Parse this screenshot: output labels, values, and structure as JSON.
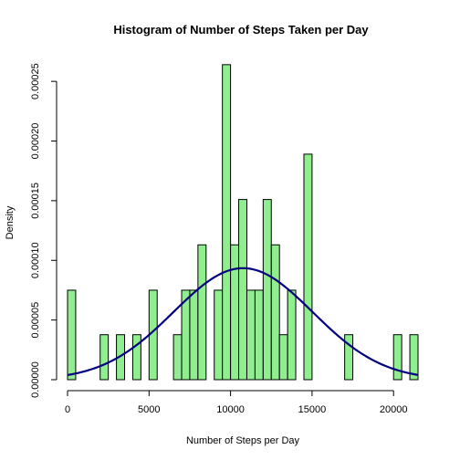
{
  "chart_data": {
    "type": "bar",
    "title": "Histogram of Number of Steps Taken per Day",
    "xlabel": "Number of Steps per Day",
    "ylabel": "Density",
    "bin_width": 500,
    "bins_start": [
      0,
      500,
      1000,
      1500,
      2000,
      2500,
      3000,
      3500,
      4000,
      4500,
      5000,
      5500,
      6000,
      6500,
      7000,
      7500,
      8000,
      8500,
      9000,
      9500,
      10000,
      10500,
      11000,
      11500,
      12000,
      12500,
      13000,
      13500,
      14000,
      14500,
      15000,
      15500,
      16000,
      16500,
      17000,
      17500,
      18000,
      18500,
      19000,
      19500,
      20000,
      20500,
      21000
    ],
    "values": [
      7.5e-05,
      0,
      0,
      0,
      3.77e-05,
      0,
      3.77e-05,
      0,
      3.77e-05,
      0,
      7.5e-05,
      0,
      0,
      3.77e-05,
      7.5e-05,
      7.5e-05,
      0.000113,
      0,
      7.5e-05,
      0.000264,
      0.000113,
      0.000151,
      7.5e-05,
      7.5e-05,
      0.000151,
      0.000113,
      3.77e-05,
      7.5e-05,
      0,
      0.000189,
      0,
      0,
      0,
      0,
      3.77e-05,
      0,
      0,
      0,
      0,
      0,
      3.77e-05,
      0,
      3.77e-05
    ],
    "density_curve": {
      "mean": 10766,
      "sd": 4269
    },
    "xlim": [
      0,
      21500
    ],
    "ylim": [
      0,
      0.00027
    ],
    "x_ticks": [
      0,
      5000,
      10000,
      15000,
      20000
    ],
    "x_tick_labels": [
      "0",
      "5000",
      "10000",
      "15000",
      "20000"
    ],
    "y_ticks": [
      0,
      5e-05,
      0.0001,
      0.00015,
      0.0002,
      0.00025
    ],
    "y_tick_labels": [
      "0.00000",
      "0.00005",
      "0.00010",
      "0.00015",
      "0.00020",
      "0.00025"
    ],
    "colors": {
      "bar_fill": "#90EE90",
      "bar_stroke": "#000000",
      "curve": "#000080"
    }
  }
}
